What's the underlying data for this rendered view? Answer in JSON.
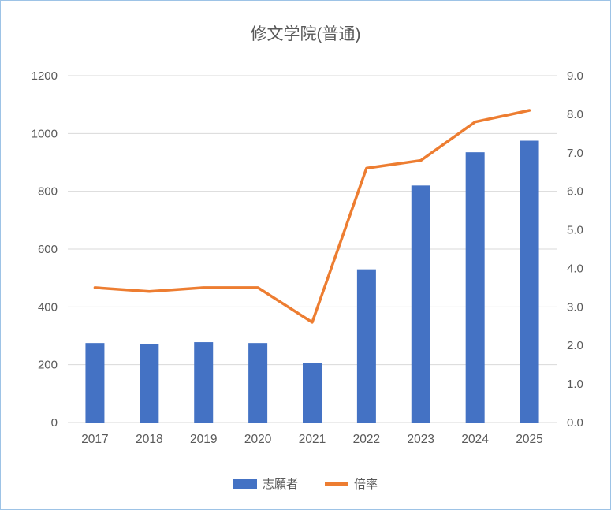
{
  "chart": {
    "title": "修文学院(普通)",
    "colors": {
      "bar": "#4472C4",
      "line": "#ED7D31",
      "grid": "#D9D9D9",
      "axis_text": "#595959",
      "title_text": "#595959",
      "border": "#9DC3E6",
      "background": "#FFFFFF"
    }
  },
  "chart_data": {
    "type": "bar",
    "subtype": "combo-bar-line",
    "title": "修文学院(普通)",
    "categories": [
      "2017",
      "2018",
      "2019",
      "2020",
      "2021",
      "2022",
      "2023",
      "2024",
      "2025"
    ],
    "series": [
      {
        "name": "志願者",
        "type": "bar",
        "axis": "left",
        "values": [
          275,
          270,
          278,
          275,
          205,
          530,
          820,
          935,
          975
        ]
      },
      {
        "name": "倍率",
        "type": "line",
        "axis": "right",
        "values": [
          3.5,
          3.4,
          3.5,
          3.5,
          2.6,
          6.6,
          6.8,
          7.8,
          8.1
        ]
      }
    ],
    "left_axis": {
      "min": 0,
      "max": 1200,
      "step": 200,
      "decimals": 0
    },
    "right_axis": {
      "min": 0,
      "max": 9,
      "step": 1,
      "decimals": 1
    },
    "grid": true,
    "legend_position": "bottom"
  }
}
